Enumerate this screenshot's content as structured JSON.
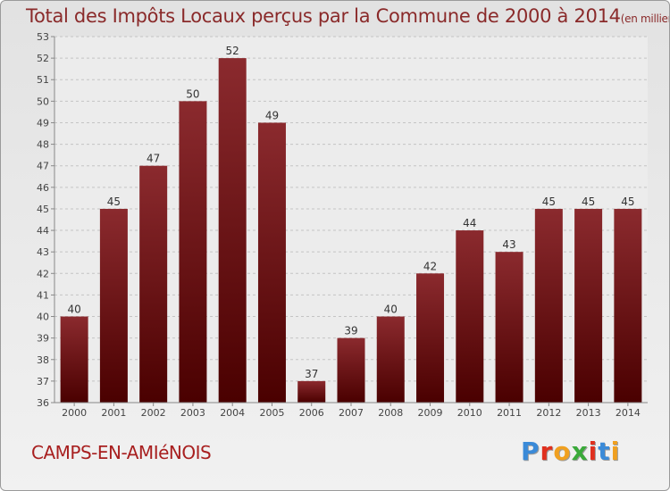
{
  "title": "Total des Impôts Locaux perçus par la Commune de 2000 à 2014",
  "title_unit": "(en milliers d'€)",
  "commune": "CAMPS-EN-AMIéNOIS",
  "brand": {
    "letters": [
      "P",
      "r",
      "o",
      "x",
      "i",
      "t",
      "i"
    ],
    "colors": [
      "#3a8ad8",
      "#e0301e",
      "#f0a020",
      "#3aaa3a",
      "#e0301e",
      "#3a8ad8",
      "#f0a020"
    ]
  },
  "chart_data": {
    "type": "bar",
    "title": "Total des Impôts Locaux perçus par la Commune de 2000 à 2014",
    "xlabel": "",
    "ylabel": "",
    "categories": [
      "2000",
      "2001",
      "2002",
      "2003",
      "2004",
      "2005",
      "2006",
      "2007",
      "2008",
      "2009",
      "2010",
      "2011",
      "2012",
      "2013",
      "2014"
    ],
    "values": [
      40,
      45,
      47,
      50,
      52,
      49,
      37,
      39,
      40,
      42,
      44,
      43,
      45,
      45,
      45
    ],
    "ylim": [
      36,
      53
    ],
    "yticks": [
      36,
      37,
      38,
      39,
      40,
      41,
      42,
      43,
      44,
      45,
      46,
      47,
      48,
      49,
      50,
      51,
      52,
      53
    ],
    "grid": true,
    "bar_color_top": "#8b2a2e",
    "bar_color_bottom": "#4a0000"
  }
}
